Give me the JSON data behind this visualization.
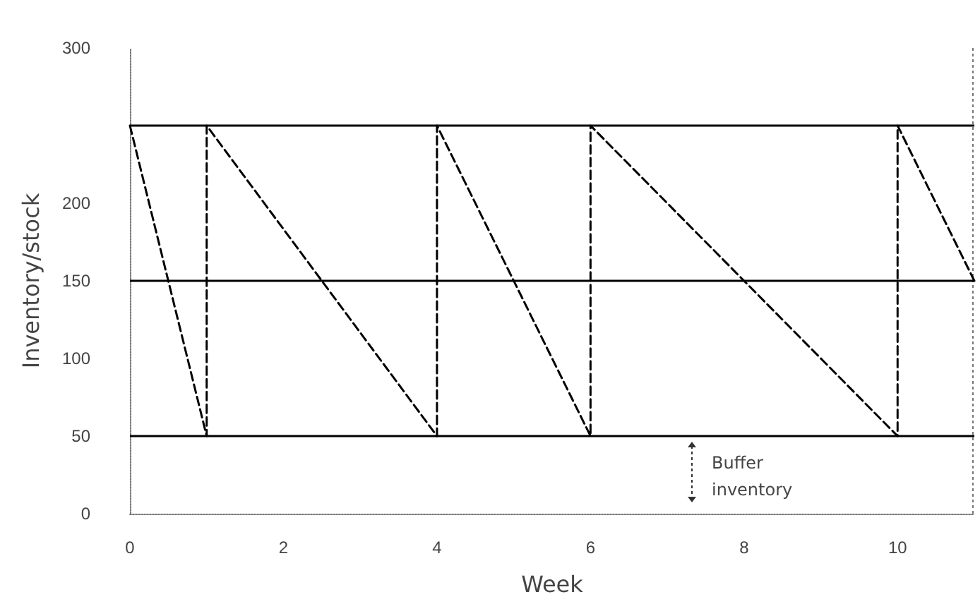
{
  "chart_data": {
    "type": "line",
    "xlabel": "Week",
    "ylabel": "Inventory/stock",
    "x": [
      0,
      1,
      1,
      4,
      4,
      6,
      6,
      10,
      10,
      11
    ],
    "series": [
      {
        "color": "#000000",
        "values": [
          250,
          50,
          250,
          50,
          250,
          50,
          250,
          50,
          250,
          150
        ]
      }
    ],
    "xlim": [
      0,
      11
    ],
    "xticks": [
      0,
      2,
      4,
      6,
      8,
      10
    ],
    "ylim": [
      0,
      300
    ],
    "yticks": [
      0,
      50,
      100,
      150,
      200,
      300
    ],
    "ref_lines": [
      {
        "axis": "y",
        "value": 250,
        "color": "#000000",
        "line_style": "solid"
      },
      {
        "axis": "y",
        "value": 150,
        "color": "#000000",
        "line_style": "solid"
      },
      {
        "axis": "y",
        "value": 50,
        "color": "#000000",
        "line_style": "solid"
      }
    ],
    "annotations": [
      "Buffer inventory"
    ],
    "grid": false,
    "marker": "none",
    "line_style": "dashed"
  }
}
